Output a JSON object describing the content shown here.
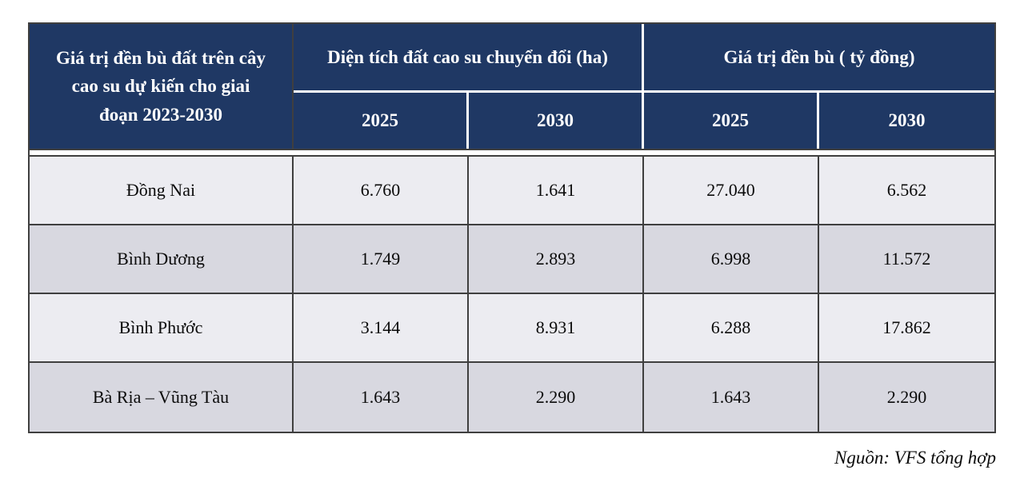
{
  "table": {
    "corner_header": "Giá trị đền bù đất trên cây cao su dự kiến cho giai đoạn 2023-2030",
    "group_headers": [
      "Diện tích đất cao su chuyển đổi (ha)",
      "Giá trị đền bù ( tỷ đồng)"
    ],
    "year_headers": [
      "2025",
      "2030",
      "2025",
      "2030"
    ],
    "rows": [
      {
        "label": "Đồng Nai",
        "values": [
          "6.760",
          "1.641",
          "27.040",
          "6.562"
        ]
      },
      {
        "label": "Bình Dương",
        "values": [
          "1.749",
          "2.893",
          "6.998",
          "11.572"
        ]
      },
      {
        "label": "Bình Phước",
        "values": [
          "3.144",
          "8.931",
          "6.288",
          "17.862"
        ]
      },
      {
        "label": "Bà Rịa – Vũng Tàu",
        "values": [
          "1.643",
          "2.290",
          "1.643",
          "2.290"
        ]
      }
    ]
  },
  "source": "Nguồn: VFS tổng hợp",
  "colors": {
    "header_blue": "#1f3864",
    "row_light": "#ececf1",
    "row_dark": "#d8d8e0",
    "border": "#3f3f3f"
  },
  "chart_data": {
    "type": "table",
    "title": "Giá trị đền bù đất trên cây cao su dự kiến cho giai đoạn 2023-2030",
    "column_groups": [
      "Diện tích đất cao su chuyển đổi (ha)",
      "Giá trị đền bù ( tỷ đồng)"
    ],
    "columns": [
      "",
      "2025",
      "2030",
      "2025",
      "2030"
    ],
    "rows": [
      [
        "Đồng Nai",
        6760,
        1641,
        27040,
        6562
      ],
      [
        "Bình Dương",
        1749,
        2893,
        6998,
        11572
      ],
      [
        "Bình Phước",
        3144,
        8931,
        6288,
        17862
      ],
      [
        "Bà Rịa – Vũng Tàu",
        1643,
        2290,
        1643,
        2290
      ]
    ],
    "source": "Nguồn: VFS tổng hợp"
  }
}
